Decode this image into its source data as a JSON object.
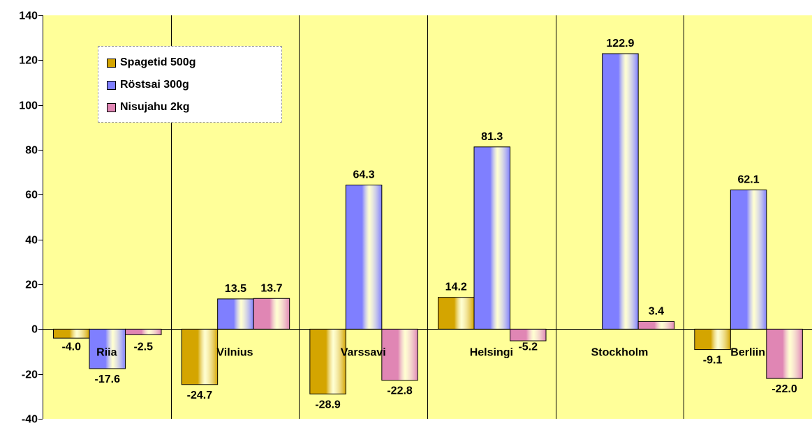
{
  "chart_data": {
    "type": "bar",
    "categories": [
      "Riia",
      "Vilnius",
      "Varssavi",
      "Helsingi",
      "Stockholm",
      "Berliin"
    ],
    "series": [
      {
        "name": "Spagetid 500g",
        "color": "#D4A500",
        "values": [
          -4.0,
          -24.7,
          -28.9,
          14.2,
          null,
          -9.1
        ],
        "labels": [
          "-4.0",
          "-24.7",
          "-28.9",
          "14.2",
          "",
          "-9.1"
        ]
      },
      {
        "name": "Röstsai 300g",
        "color": "#7F7FFF",
        "values": [
          -17.6,
          13.5,
          64.3,
          81.3,
          122.9,
          62.1
        ],
        "labels": [
          "-17.6",
          "13.5",
          "64.3",
          "81.3",
          "122.9",
          "62.1"
        ]
      },
      {
        "name": "Nisujahu 2kg",
        "color": "#E086B4",
        "values": [
          -2.5,
          13.7,
          -22.8,
          -5.2,
          3.4,
          -22.0
        ],
        "labels": [
          "-2.5",
          "13.7",
          "-22.8",
          "-5.2",
          "3.4",
          "-22.0"
        ]
      }
    ],
    "yticks": [
      "140",
      "120",
      "100",
      "80",
      "60",
      "40",
      "20",
      "0",
      "-20",
      "-40"
    ],
    "ylim": [
      -40,
      140
    ],
    "ystep": 20,
    "plot_background": "#FFFF99",
    "grid": false,
    "legend_position": "top-left"
  }
}
